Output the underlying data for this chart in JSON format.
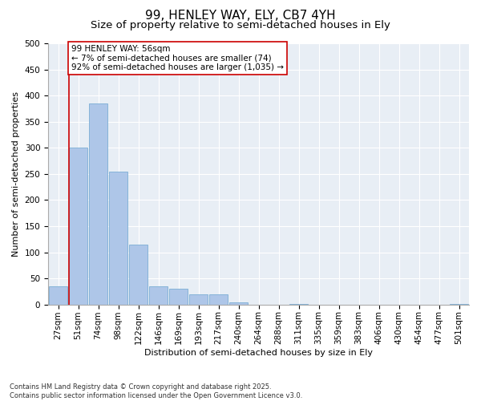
{
  "title": "99, HENLEY WAY, ELY, CB7 4YH",
  "subtitle": "Size of property relative to semi-detached houses in Ely",
  "xlabel": "Distribution of semi-detached houses by size in Ely",
  "ylabel": "Number of semi-detached properties",
  "bins": [
    "27sqm",
    "51sqm",
    "74sqm",
    "98sqm",
    "122sqm",
    "146sqm",
    "169sqm",
    "193sqm",
    "217sqm",
    "240sqm",
    "264sqm",
    "288sqm",
    "311sqm",
    "335sqm",
    "359sqm",
    "383sqm",
    "406sqm",
    "430sqm",
    "454sqm",
    "477sqm",
    "501sqm"
  ],
  "values": [
    35,
    300,
    385,
    255,
    115,
    35,
    30,
    20,
    20,
    4,
    0,
    0,
    1,
    0,
    0,
    0,
    0,
    0,
    0,
    0,
    1
  ],
  "bar_color": "#aec6e8",
  "bar_edge_color": "#7aadd4",
  "property_line_color": "#cc0000",
  "annotation_text": "99 HENLEY WAY: 56sqm\n← 7% of semi-detached houses are smaller (74)\n92% of semi-detached houses are larger (1,035) →",
  "annotation_box_color": "#cc0000",
  "background_color": "#e8eef5",
  "ylim": [
    0,
    500
  ],
  "yticks": [
    0,
    50,
    100,
    150,
    200,
    250,
    300,
    350,
    400,
    450,
    500
  ],
  "footer_text": "Contains HM Land Registry data © Crown copyright and database right 2025.\nContains public sector information licensed under the Open Government Licence v3.0.",
  "title_fontsize": 11,
  "subtitle_fontsize": 9.5,
  "axis_label_fontsize": 8,
  "tick_fontsize": 7.5,
  "annotation_fontsize": 7.5
}
